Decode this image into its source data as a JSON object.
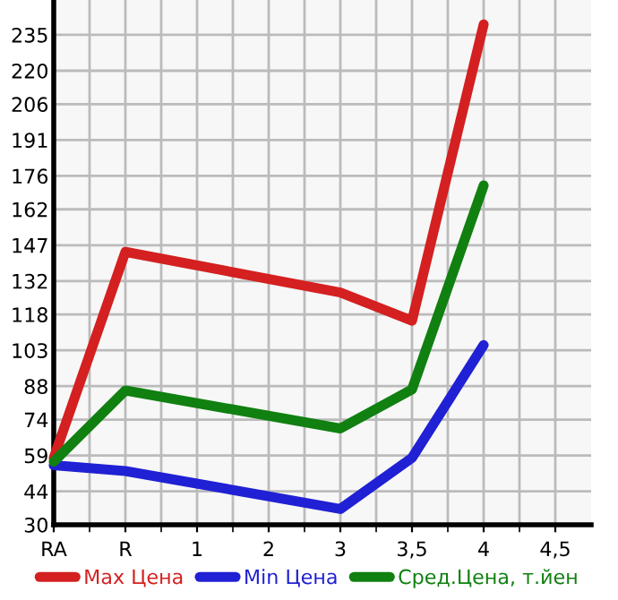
{
  "chart_data": {
    "type": "line",
    "categories": [
      "RA",
      "R",
      "1",
      "2",
      "3",
      "3,5",
      "4",
      "4,5"
    ],
    "series": [
      {
        "name": "Max Цена",
        "color": "#d42020",
        "values": [
          58,
          144.2,
          null,
          null,
          127.2,
          115.4,
          239.4,
          null
        ]
      },
      {
        "name": "Min Цена",
        "color": "#2020d4",
        "values": [
          54.9,
          52.5,
          null,
          null,
          36.6,
          58,
          105.2,
          null
        ]
      },
      {
        "name": "Сред.Цена, т.йен",
        "color": "#108010",
        "values": [
          56.4,
          86.2,
          null,
          null,
          70.3,
          86.6,
          172,
          null
        ]
      }
    ],
    "ylim": [
      30,
      249.6
    ],
    "yticks": [
      30,
      44,
      59,
      74,
      88,
      103,
      118,
      132,
      147,
      162,
      176,
      191,
      206,
      220,
      235
    ],
    "grid": true,
    "legend": "bottom",
    "marker": "none",
    "line_style": "solid"
  }
}
